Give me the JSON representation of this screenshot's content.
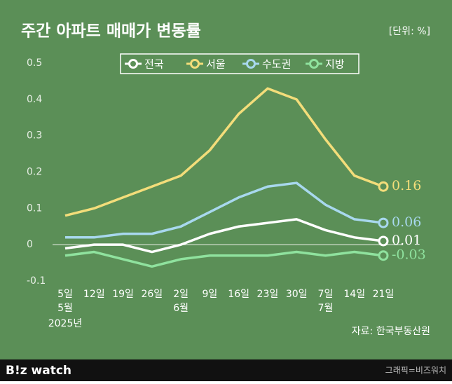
{
  "chart_data": {
    "type": "line",
    "title": "주간 아파트 매매가 변동률",
    "unit": "[단위: %]",
    "categories": [
      "5일",
      "12일",
      "19일",
      "26일",
      "2일",
      "9일",
      "16일",
      "23일",
      "30일",
      "7일",
      "14일",
      "21일"
    ],
    "month_labels": [
      "5월",
      null,
      null,
      null,
      "6월",
      null,
      null,
      null,
      null,
      "7월",
      null,
      null
    ],
    "year_label": "2025년",
    "series": [
      {
        "name": "전국",
        "color": "#ffffff",
        "values": [
          -0.01,
          0,
          0,
          -0.02,
          0,
          0.03,
          0.05,
          0.06,
          0.07,
          0.04,
          0.02,
          0.01
        ]
      },
      {
        "name": "서울",
        "color": "#f3dd7a",
        "values": [
          0.08,
          0.1,
          0.13,
          0.16,
          0.19,
          0.26,
          0.36,
          0.43,
          0.4,
          0.29,
          0.19,
          0.16
        ]
      },
      {
        "name": "수도권",
        "color": "#a8d8ee",
        "values": [
          0.02,
          0.02,
          0.03,
          0.03,
          0.05,
          0.09,
          0.13,
          0.16,
          0.17,
          0.11,
          0.07,
          0.06
        ]
      },
      {
        "name": "지방",
        "color": "#8fe29e",
        "values": [
          -0.03,
          -0.02,
          -0.04,
          -0.06,
          -0.04,
          -0.03,
          -0.03,
          -0.03,
          -0.02,
          -0.03,
          -0.02,
          -0.03
        ]
      }
    ],
    "ylim": [
      -0.1,
      0.5
    ],
    "yticks": [
      -0.1,
      0,
      0.1,
      0.2,
      0.3,
      0.4,
      0.5
    ],
    "source": "자료: 한국부동산원",
    "logo": "B!z watch",
    "credit": "그래픽=비즈워치"
  }
}
